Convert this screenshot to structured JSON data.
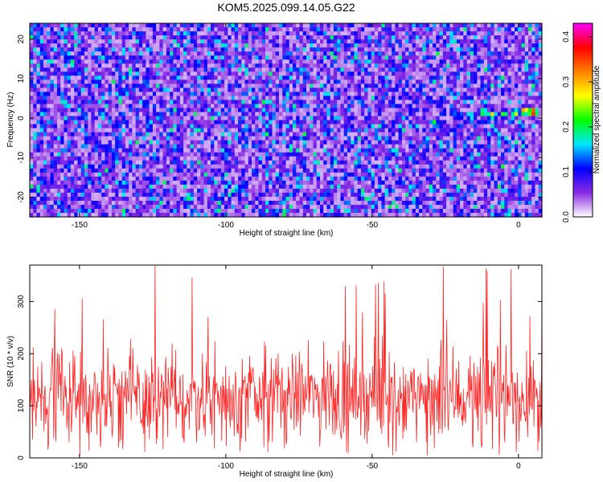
{
  "title": "KOM5.2025.099.14.05.G22",
  "chart_data": [
    {
      "type": "heatmap",
      "xlabel": "Height of straight line (km)",
      "ylabel": "Frequency (Hz)",
      "xlim": [
        -167,
        8
      ],
      "ylim": [
        -25,
        24
      ],
      "x_ticks": [
        -150,
        -100,
        -50,
        0
      ],
      "x_tick_labels": [
        "-150",
        "-100",
        "-50",
        "0"
      ],
      "y_ticks": [
        -20,
        -10,
        0,
        10,
        20
      ],
      "y_tick_labels": [
        "-20",
        "-10",
        "0",
        "10",
        "20"
      ],
      "colorbar": {
        "label": "Normalized spectral amplitude",
        "range": [
          0,
          0.43
        ],
        "ticks": [
          0.0,
          0.1,
          0.2,
          0.3,
          0.4
        ],
        "tick_labels": [
          "0.0",
          "0.1",
          "0.2",
          "0.3",
          "0.4"
        ],
        "colors": [
          "#ffffff",
          "#8a2be2",
          "#0000ff",
          "#00e5ff",
          "#00ff00",
          "#ffff00",
          "#ff8000",
          "#ff0000",
          "#ff00ff"
        ]
      },
      "noise_level": 0.05,
      "signal_track": [
        {
          "x": -30,
          "y": 4,
          "amp": 0.12
        },
        {
          "x": -27,
          "y": 3.5,
          "amp": 0.13
        },
        {
          "x": -22,
          "y": 1.5,
          "amp": 0.16
        },
        {
          "x": -20,
          "y": 0.5,
          "amp": 0.15
        },
        {
          "x": -16,
          "y": 0.5,
          "amp": 0.2
        },
        {
          "x": -12,
          "y": 1.5,
          "amp": 0.26
        },
        {
          "x": -9,
          "y": 0.8,
          "amp": 0.3
        },
        {
          "x": -5,
          "y": 1.0,
          "amp": 0.24
        },
        {
          "x": -1,
          "y": 1.3,
          "amp": 0.28
        },
        {
          "x": 2,
          "y": 1.8,
          "amp": 0.35
        },
        {
          "x": 5,
          "y": 1.5,
          "amp": 0.43
        }
      ]
    },
    {
      "type": "line",
      "xlabel": "Height of straight line (km)",
      "ylabel": "SNR (10 * v/v)",
      "xlim": [
        -167,
        8
      ],
      "ylim": [
        0,
        370
      ],
      "x_ticks": [
        -150,
        -100,
        -50,
        0
      ],
      "x_tick_labels": [
        "-150",
        "-100",
        "-50",
        "0"
      ],
      "y_ticks": [
        0,
        100,
        200,
        300
      ],
      "y_tick_labels": [
        "0",
        "100",
        "200",
        "300"
      ],
      "color": "#ff0000",
      "series_description_values": {
        "mean": 120,
        "spread": 55,
        "peak_values": [
          370,
          365,
          355,
          345
        ]
      }
    }
  ]
}
